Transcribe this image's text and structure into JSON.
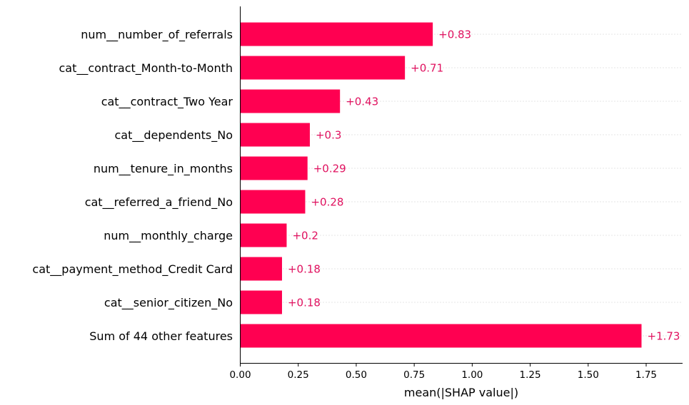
{
  "chart_data": {
    "type": "bar",
    "orientation": "horizontal",
    "categories": [
      "num__number_of_referrals",
      "cat__contract_Month-to-Month",
      "cat__contract_Two Year",
      "cat__dependents_No",
      "num__tenure_in_months",
      "cat__referred_a_friend_No",
      "num__monthly_charge",
      "cat__payment_method_Credit Card",
      "cat__senior_citizen_No",
      "Sum of 44 other features"
    ],
    "values": [
      0.83,
      0.71,
      0.43,
      0.3,
      0.29,
      0.28,
      0.2,
      0.18,
      0.18,
      1.73
    ],
    "value_labels": [
      "+0.83",
      "+0.71",
      "+0.43",
      "+0.3",
      "+0.29",
      "+0.28",
      "+0.2",
      "+0.18",
      "+0.18",
      "+1.73"
    ],
    "xlabel": "mean(|SHAP value|)",
    "ylabel": "",
    "title": "",
    "xlim": [
      0,
      1.92
    ],
    "x_ticks": [
      0.0,
      0.25,
      0.5,
      0.75,
      1.0,
      1.25,
      1.5,
      1.75
    ],
    "x_tick_labels": [
      "0.00",
      "0.25",
      "0.50",
      "0.75",
      "1.00",
      "1.25",
      "1.50",
      "1.75"
    ],
    "grid": "dotted horizontal guide lines per row",
    "colors": {
      "bar": "#ff0051",
      "value_label": "#e0115f",
      "axis": "#000000",
      "guide": "#cccccc"
    }
  }
}
